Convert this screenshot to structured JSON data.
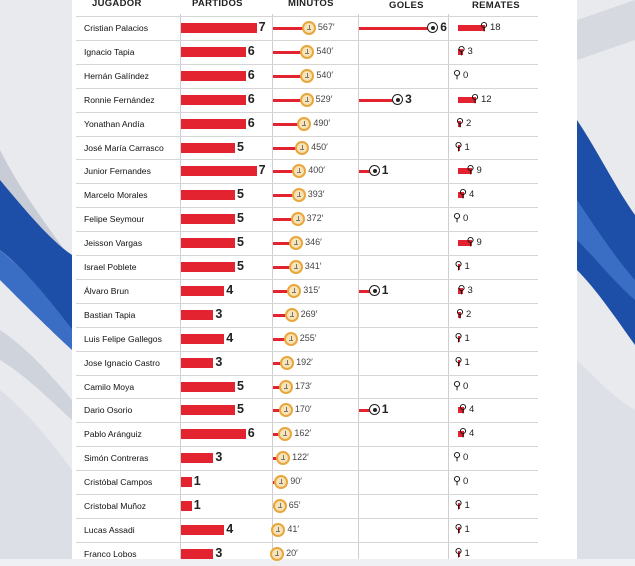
{
  "headers": {
    "jugador": "JUGADOR",
    "partidos": "PARTIDOS",
    "minutos": "MINUTOS",
    "goles": "GOLES",
    "remates": "REMATES"
  },
  "colors": {
    "bar": "#e32330",
    "clock_ring": "#e8a63c",
    "clock_fill": "#f7e3b6"
  },
  "icons": {
    "minutos": "clock-icon",
    "goles": "soccer-ball-icon",
    "remates": "kicking-player-icon"
  },
  "chart_data": {
    "type": "table",
    "columns": [
      "JUGADOR",
      "PARTIDOS",
      "MINUTOS",
      "GOLES",
      "REMATES"
    ],
    "rows": [
      {
        "jugador": "Cristian Palacios",
        "partidos": 7,
        "minutos": 567,
        "goles": 6,
        "remates": 18
      },
      {
        "jugador": "Ignacio Tapia",
        "partidos": 6,
        "minutos": 540,
        "goles": 0,
        "remates": 3
      },
      {
        "jugador": "Hernán Galíndez",
        "partidos": 6,
        "minutos": 540,
        "goles": 0,
        "remates": 0
      },
      {
        "jugador": "Ronnie Fernández",
        "partidos": 6,
        "minutos": 529,
        "goles": 3,
        "remates": 12
      },
      {
        "jugador": "Yonathan Andía",
        "partidos": 6,
        "minutos": 490,
        "goles": 0,
        "remates": 2
      },
      {
        "jugador": "José María Carrasco",
        "partidos": 5,
        "minutos": 450,
        "goles": 0,
        "remates": 1
      },
      {
        "jugador": "Junior Fernandes",
        "partidos": 7,
        "minutos": 400,
        "goles": 1,
        "remates": 9
      },
      {
        "jugador": "Marcelo Morales",
        "partidos": 5,
        "minutos": 393,
        "goles": 0,
        "remates": 4
      },
      {
        "jugador": "Felipe Seymour",
        "partidos": 5,
        "minutos": 372,
        "goles": 0,
        "remates": 0
      },
      {
        "jugador": "Jeisson Vargas",
        "partidos": 5,
        "minutos": 346,
        "goles": 0,
        "remates": 9
      },
      {
        "jugador": "Israel Poblete",
        "partidos": 5,
        "minutos": 341,
        "goles": 0,
        "remates": 1
      },
      {
        "jugador": "Álvaro Brun",
        "partidos": 4,
        "minutos": 315,
        "goles": 1,
        "remates": 3
      },
      {
        "jugador": "Bastian Tapia",
        "partidos": 3,
        "minutos": 269,
        "goles": 0,
        "remates": 2
      },
      {
        "jugador": "Luis Felipe Gallegos",
        "partidos": 4,
        "minutos": 255,
        "goles": 0,
        "remates": 1
      },
      {
        "jugador": "Jose Ignacio Castro",
        "partidos": 3,
        "minutos": 192,
        "goles": 0,
        "remates": 1
      },
      {
        "jugador": "Camilo Moya",
        "partidos": 5,
        "minutos": 173,
        "goles": 0,
        "remates": 0
      },
      {
        "jugador": "Dario Osorio",
        "partidos": 5,
        "minutos": 170,
        "goles": 1,
        "remates": 4
      },
      {
        "jugador": "Pablo Aránguiz",
        "partidos": 6,
        "minutos": 162,
        "goles": 0,
        "remates": 4
      },
      {
        "jugador": "Simón Contreras",
        "partidos": 3,
        "minutos": 122,
        "goles": 0,
        "remates": 0
      },
      {
        "jugador": "Cristóbal Campos",
        "partidos": 1,
        "minutos": 90,
        "goles": 0,
        "remates": 0
      },
      {
        "jugador": "Cristobal Muñoz",
        "partidos": 1,
        "minutos": 65,
        "goles": 0,
        "remates": 1
      },
      {
        "jugador": "Lucas Assadi",
        "partidos": 4,
        "minutos": 41,
        "goles": 0,
        "remates": 1
      },
      {
        "jugador": "Franco Lobos",
        "partidos": 3,
        "minutos": 20,
        "goles": 0,
        "remates": 1
      }
    ]
  }
}
